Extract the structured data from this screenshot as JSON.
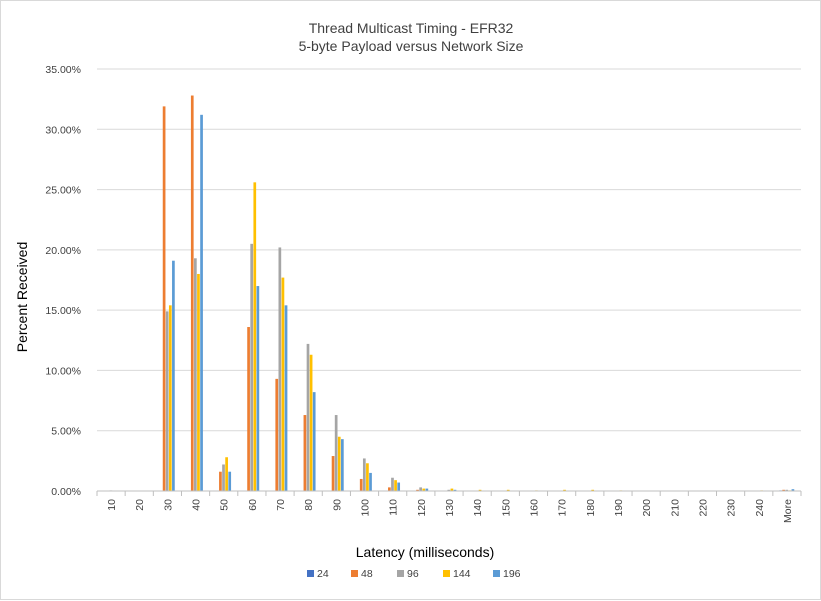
{
  "chart_data": {
    "type": "bar",
    "title": "Thread Multicast Timing - EFR32",
    "subtitle": "5-byte Payload versus Network Size",
    "xlabel": "Latency (milliseconds)",
    "ylabel": "Percent Received",
    "ylim": [
      0,
      0.35
    ],
    "yticks": [
      "0.00%",
      "5.00%",
      "10.00%",
      "15.00%",
      "20.00%",
      "25.00%",
      "30.00%",
      "35.00%"
    ],
    "grid": true,
    "legend_position": "bottom",
    "categories": [
      "10",
      "20",
      "30",
      "40",
      "50",
      "60",
      "70",
      "80",
      "90",
      "100",
      "110",
      "120",
      "130",
      "140",
      "150",
      "160",
      "170",
      "180",
      "190",
      "200",
      "210",
      "220",
      "230",
      "240",
      "More"
    ],
    "series": [
      {
        "name": "24",
        "color": "#4472C4",
        "values": [
          0,
          0,
          0,
          0,
          0,
          0,
          0,
          0,
          0,
          0,
          0,
          0,
          0,
          0,
          0,
          0,
          0,
          0,
          0,
          0,
          0,
          0,
          0,
          0,
          0.0005
        ]
      },
      {
        "name": "48",
        "color": "#ED7D31",
        "values": [
          0,
          0,
          0.319,
          0.328,
          0.016,
          0.136,
          0.093,
          0.063,
          0.029,
          0.01,
          0.003,
          0.001,
          0,
          0,
          0,
          0,
          0,
          0,
          0,
          0,
          0,
          0,
          0,
          0,
          0.001
        ]
      },
      {
        "name": "96",
        "color": "#A5A5A5",
        "values": [
          0.0005,
          0,
          0.149,
          0.193,
          0.022,
          0.205,
          0.202,
          0.122,
          0.063,
          0.027,
          0.011,
          0.003,
          0.001,
          0,
          0,
          0,
          0,
          0,
          0,
          0,
          0,
          0,
          0,
          0,
          0.001
        ]
      },
      {
        "name": "144",
        "color": "#FFC000",
        "values": [
          0,
          0,
          0.154,
          0.18,
          0.028,
          0.256,
          0.177,
          0.113,
          0.045,
          0.023,
          0.009,
          0.002,
          0.002,
          0.001,
          0.001,
          0.0005,
          0.001,
          0.001,
          0.0005,
          0,
          0,
          0,
          0,
          0.0005,
          0.0005
        ]
      },
      {
        "name": "196",
        "color": "#5B9BD5",
        "values": [
          0,
          0,
          0.191,
          0.312,
          0.016,
          0.17,
          0.154,
          0.082,
          0.043,
          0.015,
          0.007,
          0.002,
          0.001,
          0,
          0,
          0,
          0,
          0,
          0,
          0,
          0,
          0,
          0,
          0,
          0.0015
        ]
      }
    ]
  }
}
